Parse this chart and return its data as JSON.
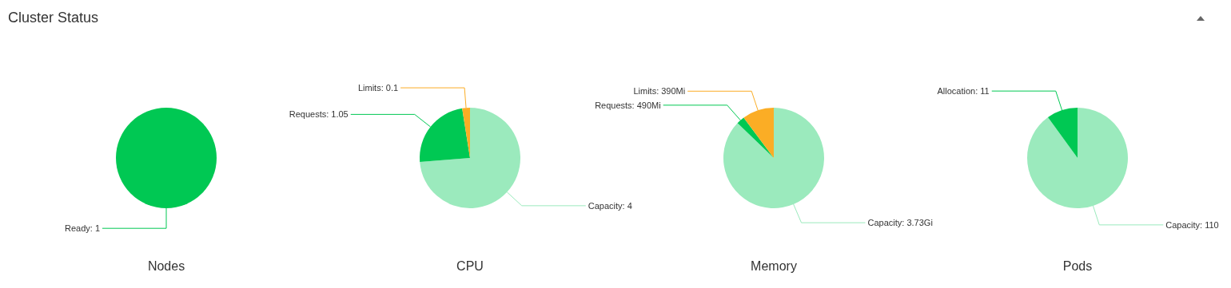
{
  "chart_data": [
    {
      "type": "pie",
      "title": "Nodes",
      "annotations": [
        "Cluster Status"
      ],
      "categories": [
        "Ready: 1"
      ],
      "values": [
        100
      ],
      "colors": [
        "#00c853"
      ]
    },
    {
      "type": "pie",
      "title": "CPU",
      "categories": [
        "Capacity: 4",
        "Requests: 1.05",
        "Limits: 0.1"
      ],
      "values": [
        73.75,
        23.75,
        2.5
      ],
      "colors": [
        "#9beabd",
        "#00c853",
        "#fbad25"
      ]
    },
    {
      "type": "pie",
      "title": "Memory",
      "categories": [
        "Capacity: 3.73Gi",
        "Requests: 490Mi",
        "Limits: 390Mi"
      ],
      "values": [
        87.2,
        2.6,
        10.2
      ],
      "colors": [
        "#9beabd",
        "#00c853",
        "#fbad25"
      ]
    },
    {
      "type": "pie",
      "title": "Pods",
      "categories": [
        "Capacity: 110",
        "Allocation: 11"
      ],
      "values": [
        90,
        10
      ],
      "colors": [
        "#9beabd",
        "#00c853"
      ]
    }
  ]
}
